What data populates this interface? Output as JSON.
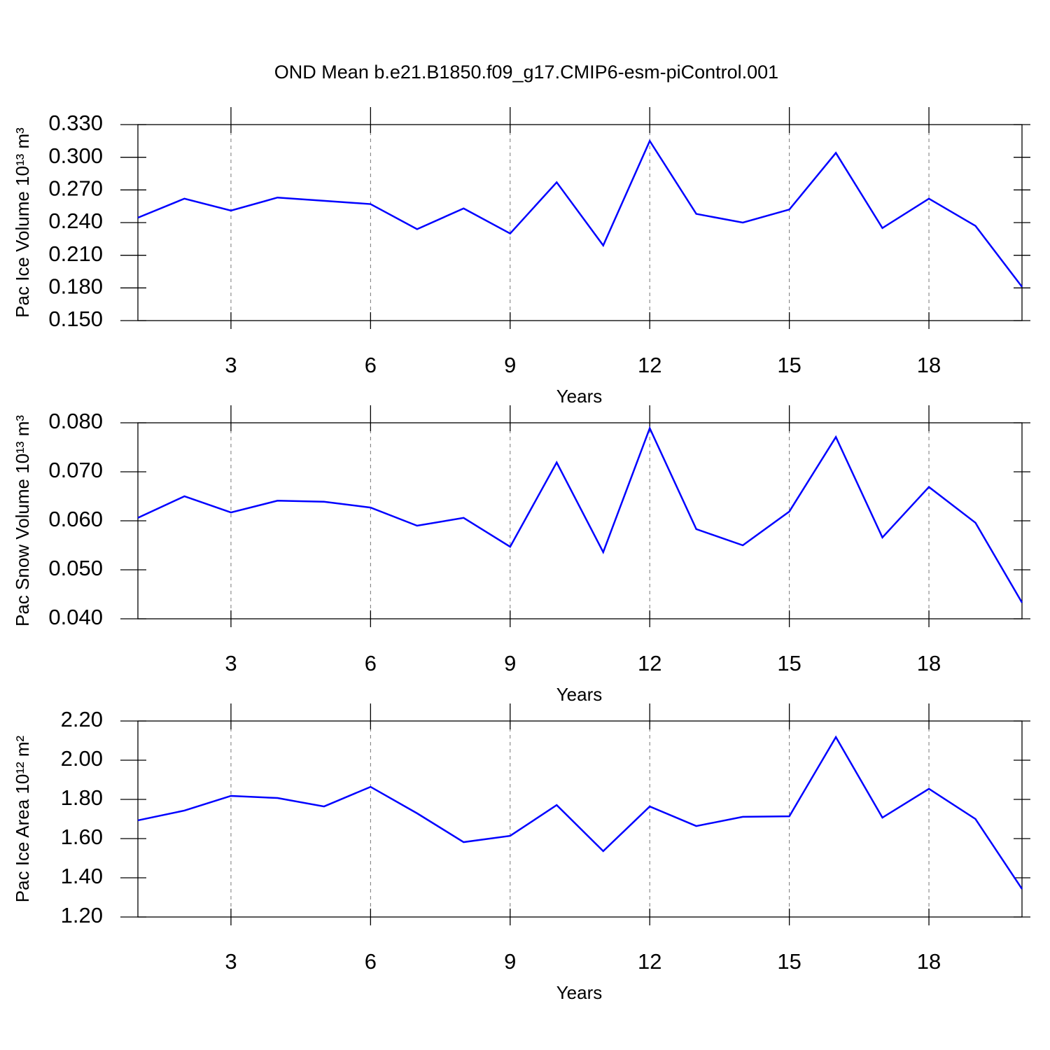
{
  "chart_data": [
    {
      "type": "line",
      "title": "OND Mean b.e21.B1850.f09_g17.CMIP6-esm-piControl.001",
      "xlabel": "Years",
      "ylabel": "Pac Ice Volume 10¹³ m³",
      "x": [
        1,
        2,
        3,
        4,
        5,
        6,
        7,
        8,
        9,
        10,
        11,
        12,
        13,
        14,
        15,
        16,
        17,
        18,
        19,
        20
      ],
      "series": [
        {
          "color": "#0000ff",
          "values": [
            0.2445,
            0.262,
            0.251,
            0.263,
            0.26,
            0.257,
            0.234,
            0.253,
            0.23,
            0.277,
            0.219,
            0.315,
            0.248,
            0.24,
            0.252,
            0.304,
            0.235,
            0.262,
            0.237,
            0.181
          ]
        }
      ],
      "xlim": [
        1,
        20
      ],
      "xticks": [
        3,
        6,
        9,
        12,
        15,
        18
      ],
      "ylim": [
        0.15,
        0.33
      ],
      "yticks": [
        {
          "value": 0.15,
          "label": "0.150"
        },
        {
          "value": 0.18,
          "label": "0.180"
        },
        {
          "value": 0.21,
          "label": "0.210"
        },
        {
          "value": 0.24,
          "label": "0.240"
        },
        {
          "value": 0.27,
          "label": "0.270"
        },
        {
          "value": 0.3,
          "label": "0.300"
        },
        {
          "value": 0.33,
          "label": "0.330"
        }
      ],
      "grid": "x"
    },
    {
      "type": "line",
      "xlabel": "Years",
      "ylabel": "Pac Snow Volume 10¹³ m³",
      "x": [
        1,
        2,
        3,
        4,
        5,
        6,
        7,
        8,
        9,
        10,
        11,
        12,
        13,
        14,
        15,
        16,
        17,
        18,
        19,
        20
      ],
      "series": [
        {
          "color": "#0000ff",
          "values": [
            0.0606,
            0.065,
            0.0617,
            0.0641,
            0.0639,
            0.0627,
            0.059,
            0.0606,
            0.0547,
            0.0719,
            0.0536,
            0.0789,
            0.0583,
            0.055,
            0.0619,
            0.0771,
            0.0566,
            0.0669,
            0.0596,
            0.0433
          ]
        }
      ],
      "xlim": [
        1,
        20
      ],
      "xticks": [
        3,
        6,
        9,
        12,
        15,
        18
      ],
      "ylim": [
        0.04,
        0.08
      ],
      "yticks": [
        {
          "value": 0.04,
          "label": "0.040"
        },
        {
          "value": 0.05,
          "label": "0.050"
        },
        {
          "value": 0.06,
          "label": "0.060"
        },
        {
          "value": 0.07,
          "label": "0.070"
        },
        {
          "value": 0.08,
          "label": "0.080"
        }
      ],
      "grid": "x"
    },
    {
      "type": "line",
      "xlabel": "Years",
      "ylabel": "Pac Ice Area 10¹² m²",
      "x": [
        1,
        2,
        3,
        4,
        5,
        6,
        7,
        8,
        9,
        10,
        11,
        12,
        13,
        14,
        15,
        16,
        17,
        18,
        19,
        20
      ],
      "series": [
        {
          "color": "#0000ff",
          "values": [
            1.693,
            1.743,
            1.818,
            1.807,
            1.764,
            1.864,
            1.729,
            1.582,
            1.614,
            1.771,
            1.536,
            1.764,
            1.664,
            1.711,
            1.714,
            2.118,
            1.707,
            1.854,
            1.7,
            1.343
          ]
        }
      ],
      "xlim": [
        1,
        20
      ],
      "xticks": [
        3,
        6,
        9,
        12,
        15,
        18
      ],
      "ylim": [
        1.2,
        2.2
      ],
      "yticks": [
        {
          "value": 1.2,
          "label": "1.20"
        },
        {
          "value": 1.4,
          "label": "1.40"
        },
        {
          "value": 1.6,
          "label": "1.60"
        },
        {
          "value": 1.8,
          "label": "1.80"
        },
        {
          "value": 2.0,
          "label": "2.00"
        },
        {
          "value": 2.2,
          "label": "2.20"
        }
      ],
      "grid": "x"
    }
  ]
}
